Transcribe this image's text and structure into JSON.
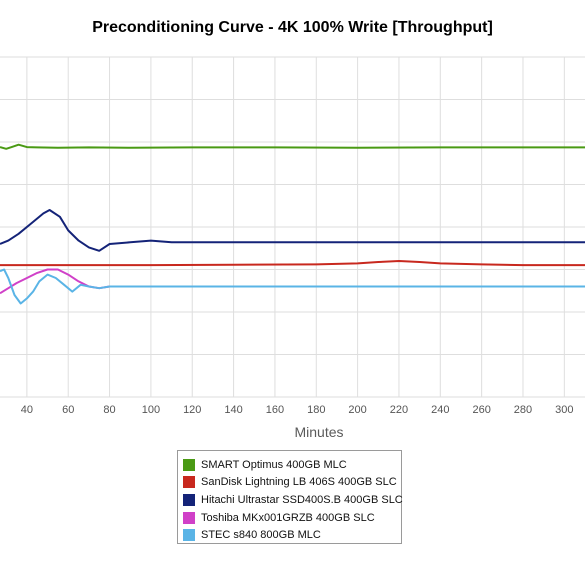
{
  "chart_data": {
    "type": "line",
    "title": "Preconditioning Curve - 4K 100% Write [Throughput]",
    "xlabel": "Minutes",
    "ylabel": "",
    "x_ticks": [
      40,
      60,
      80,
      100,
      120,
      140,
      160,
      180,
      200,
      220,
      240,
      260,
      280,
      300
    ],
    "xlim": [
      27,
      310
    ],
    "ylim": [
      0,
      100
    ],
    "grid": true,
    "legend_position": "bottom",
    "series": [
      {
        "name": "SMART Optimus 400GB MLC",
        "color": "#4a9a14",
        "x": [
          27,
          30,
          33,
          36,
          40,
          45,
          55,
          70,
          90,
          120,
          160,
          200,
          240,
          280,
          310
        ],
        "y": [
          73.5,
          73.0,
          73.6,
          74.2,
          73.5,
          73.4,
          73.3,
          73.4,
          73.3,
          73.4,
          73.4,
          73.3,
          73.4,
          73.4,
          73.4
        ]
      },
      {
        "name": "SanDisk Lightning LB 406S 400GB SLC",
        "color": "#c8281e",
        "x": [
          27,
          40,
          60,
          80,
          100,
          140,
          180,
          200,
          210,
          220,
          230,
          240,
          260,
          280,
          310
        ],
        "y": [
          38.8,
          38.8,
          38.8,
          38.8,
          38.8,
          38.9,
          39.0,
          39.3,
          39.7,
          40.0,
          39.7,
          39.3,
          39.0,
          38.8,
          38.8
        ]
      },
      {
        "name": "Hitachi Ultrastar SSD400S.B 400GB SLC",
        "color": "#142378",
        "x": [
          27,
          31,
          36,
          42,
          48,
          51,
          56,
          60,
          65,
          70,
          75,
          80,
          90,
          100,
          110,
          120,
          140,
          160,
          180,
          200,
          220,
          240,
          260,
          280,
          300,
          310
        ],
        "y": [
          45,
          46,
          48,
          51,
          54,
          55,
          53,
          49,
          46,
          44,
          43,
          45,
          45.5,
          46,
          45.5,
          45.5,
          45.5,
          45.5,
          45.5,
          45.5,
          45.5,
          45.5,
          45.5,
          45.5,
          45.5,
          45.5
        ]
      },
      {
        "name": "Toshiba MKx001GRZB 400GB SLC",
        "color": "#d040c8",
        "x": [
          27,
          31,
          35,
          40,
          45,
          50,
          55,
          60,
          65,
          70,
          75,
          80,
          90,
          100,
          120,
          150,
          180,
          210,
          240,
          270,
          300,
          310
        ],
        "y": [
          30.5,
          32,
          33.5,
          35,
          36.5,
          37.5,
          37.5,
          36,
          34,
          32.5,
          32,
          32.5,
          32.5,
          32.5,
          32.5,
          32.5,
          32.5,
          32.5,
          32.5,
          32.5,
          32.5,
          32.5
        ]
      },
      {
        "name": "STEC s840 800GB MLC",
        "color": "#5ab4e6",
        "x": [
          27,
          29,
          31,
          34,
          37,
          40,
          43,
          46,
          50,
          54,
          58,
          62,
          66,
          70,
          75,
          80,
          90,
          100,
          120,
          150,
          180,
          210,
          240,
          270,
          300,
          310
        ],
        "y": [
          37,
          37.5,
          35,
          30,
          27.5,
          29,
          31,
          34,
          36,
          35,
          33,
          31,
          33,
          32.5,
          32,
          32.5,
          32.5,
          32.5,
          32.5,
          32.5,
          32.5,
          32.5,
          32.5,
          32.5,
          32.5,
          32.5
        ]
      }
    ]
  }
}
